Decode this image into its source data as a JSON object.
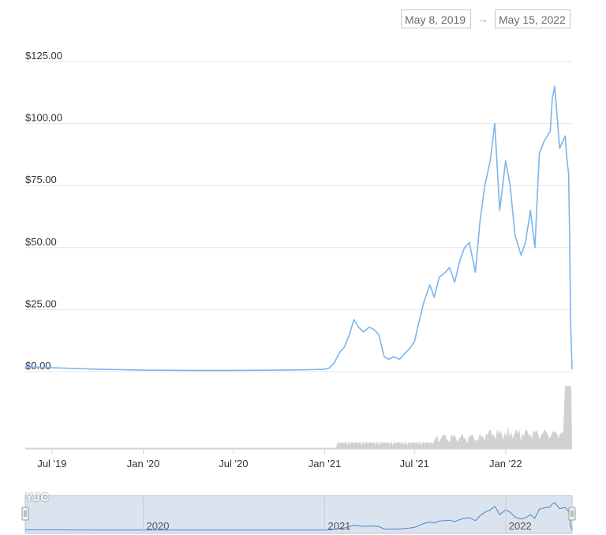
{
  "date_range": {
    "start": "May 8, 2019",
    "arrow": "→",
    "end": "May 15, 2022"
  },
  "watermark": "YJC",
  "colors": {
    "price_line": "#7cb5ec",
    "volume": "#cccccc",
    "grid": "#e6e6e6",
    "navigator_fill": "#dbe3ef"
  },
  "chart_data": {
    "type": "line",
    "y_ticks": [
      "$125.00",
      "$100.00",
      "$75.00",
      "$50.00",
      "$25.00",
      "$0.00"
    ],
    "ylim": [
      0,
      125
    ],
    "x_ticks": [
      "Jul '19",
      "Jan '20",
      "Jul '20",
      "Jan '21",
      "Jul '21",
      "Jan '22"
    ],
    "navigator_labels": [
      "2020",
      "2021",
      "2022"
    ],
    "grid": true,
    "series": [
      {
        "x": [
          "2019-05-08",
          "2019-07-01",
          "2019-10-01",
          "2020-01-01",
          "2020-04-01",
          "2020-07-01",
          "2020-10-01",
          "2020-12-01",
          "2021-01-01",
          "2021-01-10",
          "2021-01-20",
          "2021-02-01",
          "2021-02-10",
          "2021-02-20",
          "2021-03-01",
          "2021-03-10",
          "2021-03-20",
          "2021-04-01",
          "2021-04-10",
          "2021-04-20",
          "2021-05-01",
          "2021-05-10",
          "2021-05-20",
          "2021-06-01",
          "2021-06-10",
          "2021-06-20",
          "2021-07-01",
          "2021-07-10",
          "2021-07-20",
          "2021-08-01",
          "2021-08-10",
          "2021-08-20",
          "2021-09-01",
          "2021-09-10",
          "2021-09-20",
          "2021-10-01",
          "2021-10-10",
          "2021-10-20",
          "2021-11-01",
          "2021-11-10",
          "2021-11-20",
          "2021-12-01",
          "2021-12-10",
          "2021-12-20",
          "2022-01-01",
          "2022-01-10",
          "2022-01-20",
          "2022-02-01",
          "2022-02-10",
          "2022-02-20",
          "2022-03-01",
          "2022-03-10",
          "2022-03-20",
          "2022-04-01",
          "2022-04-05",
          "2022-04-10",
          "2022-04-20",
          "2022-05-01",
          "2022-05-05",
          "2022-05-08",
          "2022-05-10",
          "2022-05-12",
          "2022-05-15"
        ],
        "y": [
          2.0,
          1.6,
          1.0,
          0.6,
          0.5,
          0.5,
          0.6,
          0.8,
          1.0,
          1.5,
          3.5,
          8,
          10,
          15,
          21,
          18,
          16,
          18,
          17,
          15,
          6,
          5,
          6,
          5,
          7,
          9,
          12,
          20,
          28,
          35,
          30,
          38,
          40,
          42,
          36,
          45,
          50,
          52,
          40,
          60,
          75,
          85,
          100,
          65,
          85,
          75,
          55,
          47,
          52,
          65,
          50,
          88,
          93,
          97,
          110,
          115,
          90,
          95,
          85,
          80,
          55,
          20,
          1.0
        ]
      }
    ]
  }
}
